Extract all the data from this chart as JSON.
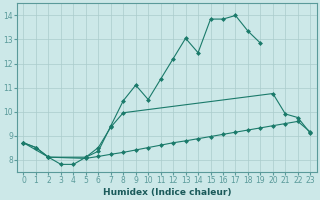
{
  "xlabel": "Humidex (Indice chaleur)",
  "bg_color": "#cce8e8",
  "grid_color": "#aacccc",
  "line_color": "#1a7a6a",
  "xlim": [
    -0.5,
    23.5
  ],
  "ylim": [
    7.5,
    14.5
  ],
  "xtick_labels": [
    "0",
    "1",
    "2",
    "3",
    "4",
    "5",
    "6",
    "7",
    "8",
    "9",
    "10",
    "11",
    "12",
    "13",
    "14",
    "15",
    "16",
    "17",
    "18",
    "19",
    "20",
    "21",
    "22",
    "23"
  ],
  "xticks": [
    0,
    1,
    2,
    3,
    4,
    5,
    6,
    7,
    8,
    9,
    10,
    11,
    12,
    13,
    14,
    15,
    16,
    17,
    18,
    19,
    20,
    21,
    22,
    23
  ],
  "yticks": [
    8,
    9,
    10,
    11,
    12,
    13,
    14
  ],
  "line1": {
    "x": [
      0,
      1,
      2,
      3,
      4,
      5,
      6,
      7,
      8,
      9,
      10,
      11,
      12,
      13,
      14,
      15,
      16,
      17,
      18,
      19
    ],
    "y": [
      8.7,
      8.5,
      8.1,
      7.8,
      7.8,
      8.1,
      8.35,
      9.4,
      10.45,
      11.1,
      10.5,
      11.35,
      12.2,
      13.05,
      12.45,
      13.85,
      13.85,
      14.0,
      13.35,
      12.85
    ]
  },
  "line2": {
    "x": [
      0,
      1,
      2,
      5,
      6,
      7,
      8,
      20,
      21,
      22,
      23
    ],
    "y": [
      8.7,
      8.5,
      8.1,
      8.1,
      8.5,
      9.35,
      9.95,
      10.75,
      9.9,
      9.75,
      9.1
    ]
  },
  "line3": {
    "x": [
      0,
      2,
      5,
      6,
      7,
      8,
      9,
      10,
      11,
      12,
      13,
      14,
      15,
      16,
      17,
      18,
      19,
      20,
      21,
      22,
      23
    ],
    "y": [
      8.7,
      8.1,
      8.05,
      8.13,
      8.22,
      8.3,
      8.4,
      8.5,
      8.6,
      8.7,
      8.78,
      8.87,
      8.96,
      9.05,
      9.14,
      9.23,
      9.32,
      9.41,
      9.5,
      9.59,
      9.15
    ]
  }
}
